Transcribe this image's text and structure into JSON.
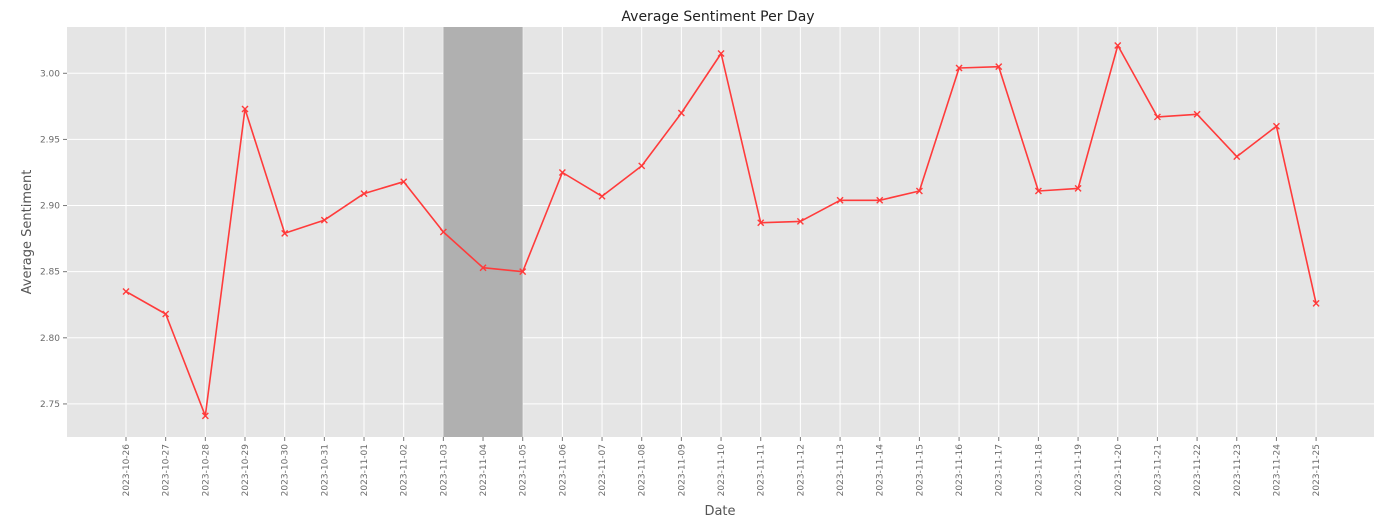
{
  "chart_data": {
    "type": "line",
    "title": "Average Sentiment Per Day",
    "xlabel": "Date",
    "ylabel": "Average Sentiment",
    "ylim": [
      2.725,
      3.035
    ],
    "yticks": [
      2.75,
      2.8,
      2.85,
      2.9,
      2.95,
      3.0
    ],
    "ytick_labels": [
      "2.75",
      "2.80",
      "2.85",
      "2.90",
      "2.95",
      "3.00"
    ],
    "grid": true,
    "background": "#e5e5e5",
    "grid_color": "#ffffff",
    "line_color": "#ff3b3b",
    "marker": "x",
    "highlight": {
      "start": "2023-11-03",
      "end": "2023-11-05",
      "color": "#b0b0b0"
    },
    "categories": [
      "2023-10-26",
      "2023-10-27",
      "2023-10-28",
      "2023-10-29",
      "2023-10-30",
      "2023-10-31",
      "2023-11-01",
      "2023-11-02",
      "2023-11-03",
      "2023-11-04",
      "2023-11-05",
      "2023-11-06",
      "2023-11-07",
      "2023-11-08",
      "2023-11-09",
      "2023-11-10",
      "2023-11-11",
      "2023-11-12",
      "2023-11-13",
      "2023-11-14",
      "2023-11-15",
      "2023-11-16",
      "2023-11-17",
      "2023-11-18",
      "2023-11-19",
      "2023-11-20",
      "2023-11-21",
      "2023-11-22",
      "2023-11-23",
      "2023-11-24",
      "2023-11-25"
    ],
    "values": [
      2.835,
      2.818,
      2.741,
      2.973,
      2.879,
      2.889,
      2.909,
      2.918,
      2.88,
      2.853,
      2.85,
      2.925,
      2.907,
      2.93,
      2.97,
      3.015,
      2.887,
      2.888,
      2.904,
      2.904,
      2.911,
      3.004,
      3.005,
      2.911,
      2.913,
      3.021,
      2.967,
      2.969,
      2.937,
      2.96,
      2.826
    ]
  }
}
